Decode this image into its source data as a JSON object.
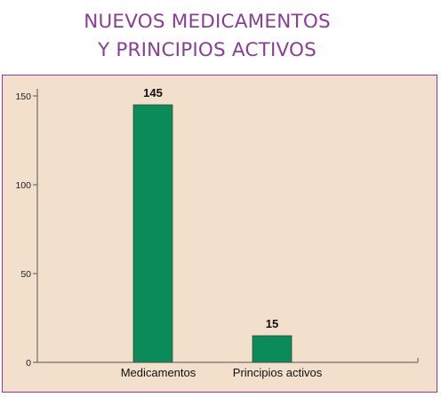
{
  "title": {
    "line1": "NUEVOS MEDICAMENTOS",
    "line2": "Y PRINCIPIOS ACTIVOS"
  },
  "colors": {
    "bar": "#0b8a5a",
    "title": "#8a3f97",
    "panel": "#f2dfcc"
  },
  "chart_data": {
    "type": "bar",
    "title": "NUEVOS MEDICAMENTOS Y PRINCIPIOS ACTIVOS",
    "categories": [
      "Medicamentos",
      "Principios activos"
    ],
    "values": [
      145,
      15
    ],
    "data_labels": [
      "145",
      "15"
    ],
    "yticks": [
      0,
      50,
      100,
      150
    ],
    "ytick_labels": [
      "0",
      "50",
      "100",
      "150"
    ],
    "ylim": [
      0,
      150
    ],
    "xlabel": "",
    "ylabel": "",
    "grid": false,
    "legend": "none"
  }
}
